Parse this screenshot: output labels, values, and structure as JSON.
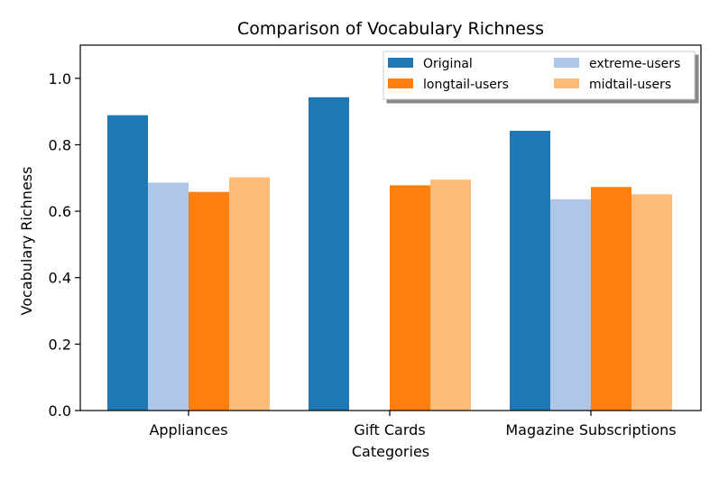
{
  "chart_data": {
    "type": "bar",
    "title": "Comparison of Vocabulary Richness",
    "xlabel": "Categories",
    "ylabel": "Vocabulary Richness",
    "categories": [
      "Appliances",
      "Gift Cards",
      "Magazine Subscriptions"
    ],
    "ylim": [
      0,
      1.1
    ],
    "yticks": [
      "0.0",
      "0.2",
      "0.4",
      "0.6",
      "0.8",
      "1.0"
    ],
    "grid": false,
    "legend_position": "top-right",
    "series": [
      {
        "name": "Original",
        "color": "#1f77b4",
        "values": [
          0.889,
          0.943,
          0.842
        ]
      },
      {
        "name": "extreme-users",
        "color": "#aec7e8",
        "values": [
          0.686,
          null,
          0.636
        ]
      },
      {
        "name": "longtail-users",
        "color": "#ff7f0e",
        "values": [
          0.658,
          0.678,
          0.673
        ]
      },
      {
        "name": "midtail-users",
        "color": "#ffbb78",
        "values": [
          0.702,
          0.695,
          0.651
        ]
      }
    ]
  }
}
